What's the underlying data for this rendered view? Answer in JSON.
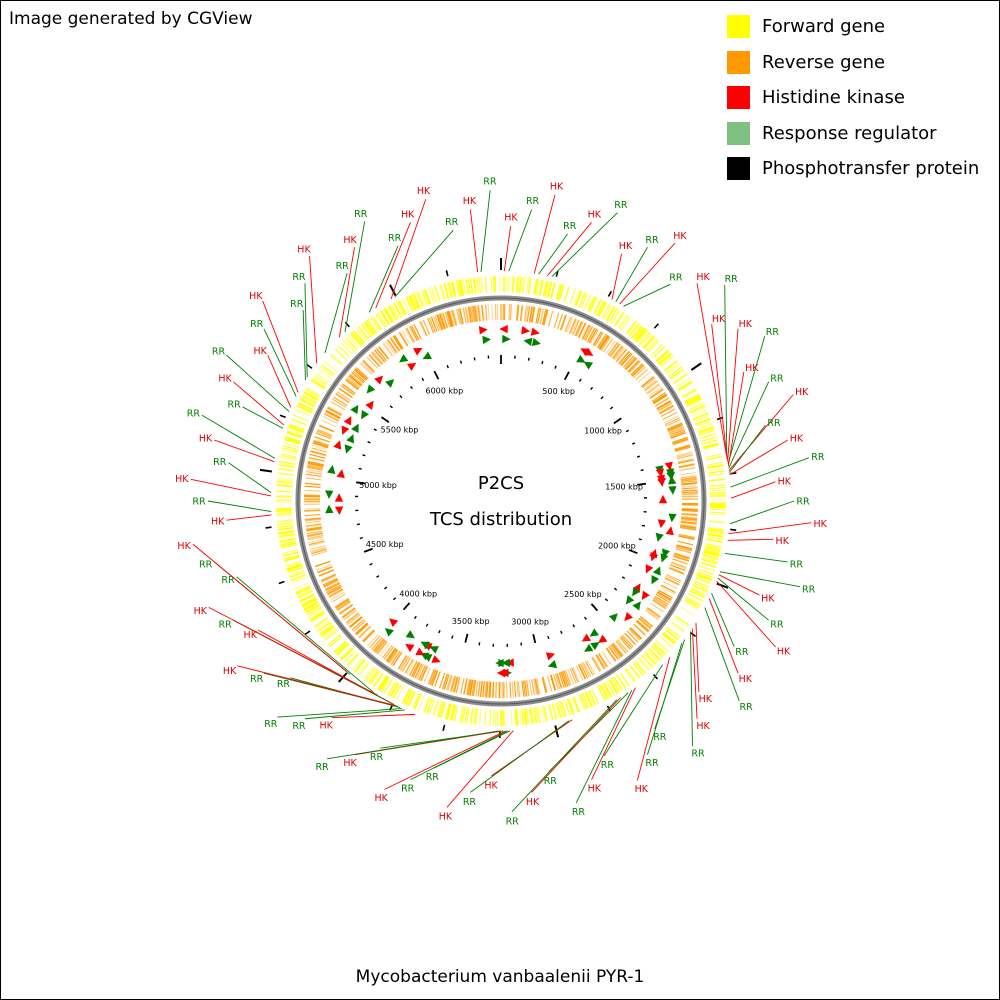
{
  "credit": "Image generated by CGView",
  "organism": "Mycobacterium vanbaalenii PYR-1",
  "center": {
    "line1": "P2CS",
    "line2": "TCS distribution"
  },
  "legend": [
    {
      "label": "Forward gene",
      "color": "#ffff00"
    },
    {
      "label": "Reverse gene",
      "color": "#ff9900"
    },
    {
      "label": "Histidine kinase",
      "color": "#ff0000"
    },
    {
      "label": "Response regulator",
      "color": "#7fbf7f"
    },
    {
      "label": "Phosphotransfer protein",
      "color": "#000000"
    }
  ],
  "colors": {
    "hk": "#ff0000",
    "rr": "#008000",
    "hk_label": "#dd0000",
    "rr_label": "#008000",
    "forward": "#ffff00",
    "reverse": "#ff9900",
    "backbone": "#888888"
  },
  "genome": {
    "length_kbp": 6490,
    "tick_labels_kbp": [
      500,
      1000,
      1500,
      2000,
      2500,
      3000,
      3500,
      4000,
      4500,
      5000,
      5500,
      6000
    ]
  },
  "features": [
    {
      "type": "RR",
      "kbp": 5860
    },
    {
      "type": "HK",
      "kbp": 5895
    },
    {
      "type": "HK",
      "kbp": 5975
    },
    {
      "type": "RR",
      "kbp": 5995
    },
    {
      "type": "HK",
      "kbp": 5685
    },
    {
      "type": "RR",
      "kbp": 5720
    },
    {
      "type": "RR",
      "kbp": 5590
    },
    {
      "type": "HK",
      "kbp": 5530
    },
    {
      "type": "RR",
      "kbp": 5455
    },
    {
      "type": "RR",
      "kbp": 5440
    },
    {
      "type": "HK",
      "kbp": 5375
    },
    {
      "type": "RR",
      "kbp": 5355
    },
    {
      "type": "HK",
      "kbp": 5300
    },
    {
      "type": "RR",
      "kbp": 5280
    },
    {
      "type": "HK",
      "kbp": 5215
    },
    {
      "type": "RR",
      "kbp": 5200
    },
    {
      "type": "RR",
      "kbp": 5060
    },
    {
      "type": "HK",
      "kbp": 5045
    },
    {
      "type": "RR",
      "kbp": 4905
    },
    {
      "type": "HK",
      "kbp": 4890
    },
    {
      "type": "RR",
      "kbp": 4820
    },
    {
      "type": "HK",
      "kbp": 4805
    },
    {
      "type": "HK",
      "kbp": 6385
    },
    {
      "type": "RR",
      "kbp": 6400
    },
    {
      "type": "HK",
      "kbp": 15
    },
    {
      "type": "RR",
      "kbp": 35
    },
    {
      "type": "HK",
      "kbp": 150
    },
    {
      "type": "RR",
      "kbp": 170
    },
    {
      "type": "HK",
      "kbp": 210
    },
    {
      "type": "RR",
      "kbp": 230
    },
    {
      "type": "HK",
      "kbp": 520
    },
    {
      "type": "RR",
      "kbp": 540
    },
    {
      "type": "HK",
      "kbp": 560
    },
    {
      "type": "RR",
      "kbp": 580
    },
    {
      "type": "HK",
      "kbp": 1415
    },
    {
      "type": "RR",
      "kbp": 1425
    },
    {
      "type": "HK",
      "kbp": 1435
    },
    {
      "type": "HK",
      "kbp": 1445
    },
    {
      "type": "RR",
      "kbp": 1455
    },
    {
      "type": "HK",
      "kbp": 1465
    },
    {
      "type": "RR",
      "kbp": 1475
    },
    {
      "type": "HK",
      "kbp": 1485
    },
    {
      "type": "RR",
      "kbp": 1495
    },
    {
      "type": "HK",
      "kbp": 1505
    },
    {
      "type": "RR",
      "kbp": 1560
    },
    {
      "type": "HK",
      "kbp": 1610
    },
    {
      "type": "RR",
      "kbp": 1725
    },
    {
      "type": "HK",
      "kbp": 1770
    },
    {
      "type": "HK",
      "kbp": 1800
    },
    {
      "type": "RR",
      "kbp": 1860
    },
    {
      "type": "RR",
      "kbp": 1945
    },
    {
      "type": "HK",
      "kbp": 1960
    },
    {
      "type": "RR",
      "kbp": 1975
    },
    {
      "type": "HK",
      "kbp": 1990
    },
    {
      "type": "RR",
      "kbp": 2050
    },
    {
      "type": "HK",
      "kbp": 2075
    },
    {
      "type": "RR",
      "kbp": 2120
    },
    {
      "type": "HK",
      "kbp": 2200
    },
    {
      "type": "HK",
      "kbp": 2230
    },
    {
      "type": "RR",
      "kbp": 2245
    },
    {
      "type": "RR",
      "kbp": 2290
    },
    {
      "type": "RR",
      "kbp": 2310
    },
    {
      "type": "HK",
      "kbp": 2395
    },
    {
      "type": "RR",
      "kbp": 2440
    },
    {
      "type": "HK",
      "kbp": 2600
    },
    {
      "type": "RR",
      "kbp": 2620
    },
    {
      "type": "RR",
      "kbp": 2640
    },
    {
      "type": "HK",
      "kbp": 2680
    },
    {
      "type": "RR",
      "kbp": 2700
    },
    {
      "type": "HK",
      "kbp": 2920
    },
    {
      "type": "RR",
      "kbp": 2935
    },
    {
      "type": "HK",
      "kbp": 3190
    },
    {
      "type": "RR",
      "kbp": 3205
    },
    {
      "type": "RR",
      "kbp": 3215
    },
    {
      "type": "HK",
      "kbp": 3225
    },
    {
      "type": "RR",
      "kbp": 3235
    },
    {
      "type": "HK",
      "kbp": 3245
    },
    {
      "type": "RR",
      "kbp": 3255
    },
    {
      "type": "HK",
      "kbp": 3640
    },
    {
      "type": "RR",
      "kbp": 3690
    },
    {
      "type": "RR",
      "kbp": 3705
    },
    {
      "type": "RR",
      "kbp": 3715
    },
    {
      "type": "RR",
      "kbp": 3725
    },
    {
      "type": "HK",
      "kbp": 3735
    },
    {
      "type": "HK",
      "kbp": 3745
    },
    {
      "type": "RR",
      "kbp": 3755
    },
    {
      "type": "HK",
      "kbp": 3830
    },
    {
      "type": "RR",
      "kbp": 3850
    },
    {
      "type": "RR",
      "kbp": 3985
    },
    {
      "type": "HK",
      "kbp": 4005
    }
  ]
}
